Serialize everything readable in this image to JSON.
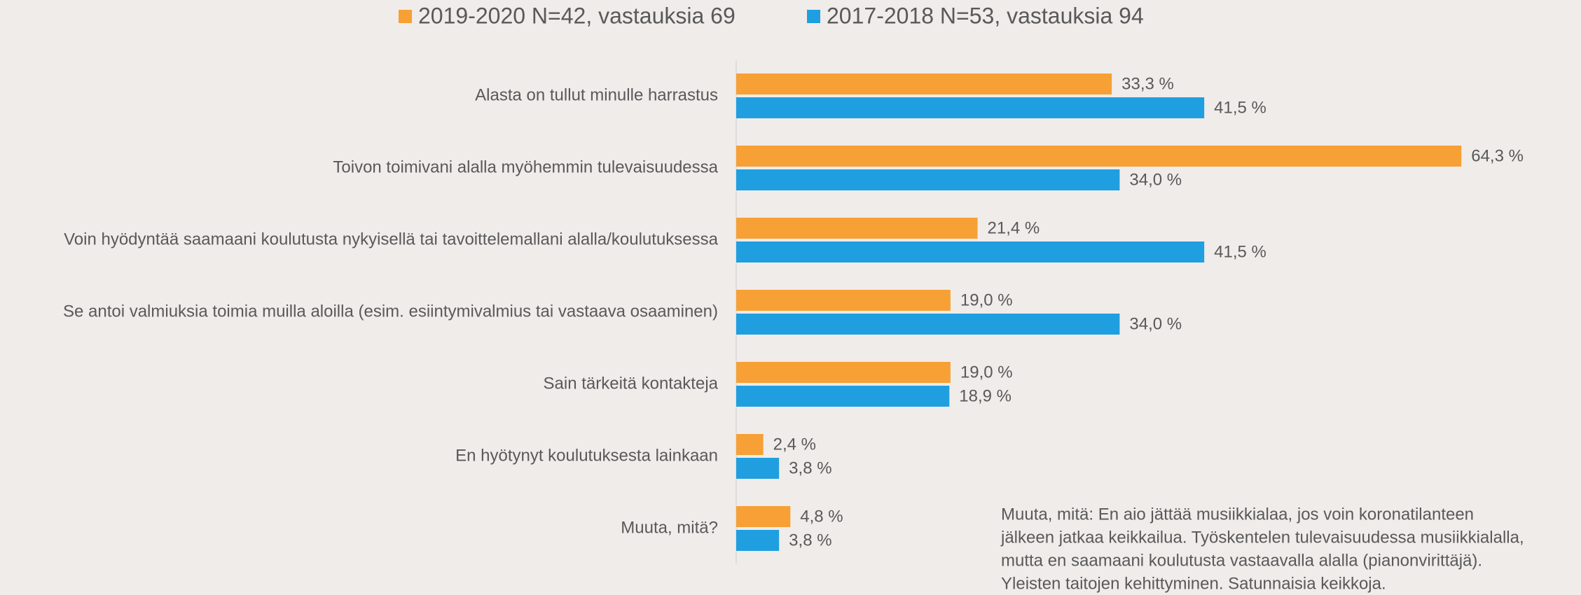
{
  "chart_data": {
    "type": "hbar",
    "categories": [
      "Alasta on tullut minulle harrastus",
      "Toivon toimivani alalla myöhemmin tulevaisuudessa",
      "Voin hyödyntää saamaani koulutusta nykyisellä tai tavoittelemallani alalla/koulutuksessa",
      "Se antoi valmiuksia toimia muilla aloilla (esim. esiintymivalmius tai vastaava osaaminen)",
      "Sain tärkeitä kontakteja",
      "En hyötynyt koulutuksesta lainkaan",
      "Muuta, mitä?"
    ],
    "series": [
      {
        "name": "2019-2020 N=42, vastauksia 69",
        "color": "#f7a035",
        "values": [
          33.3,
          64.3,
          21.4,
          19.0,
          19.0,
          2.4,
          4.8
        ],
        "value_labels": [
          "33,3 %",
          "64,3 %",
          "21,4 %",
          "19,0 %",
          "19,0 %",
          "2,4 %",
          "4,8 %"
        ]
      },
      {
        "name": "2017-2018 N=53, vastauksia 94",
        "color": "#1f9fe0",
        "values": [
          41.5,
          34.0,
          41.5,
          34.0,
          18.9,
          3.8,
          3.8
        ],
        "value_labels": [
          "41,5 %",
          "34,0 %",
          "41,5 %",
          "34,0 %",
          "18,9 %",
          "3,8 %",
          "3,8 %"
        ]
      }
    ],
    "annotation": [
      "Muuta, mitä: En aio jättää musiikkialaa, jos voin koronatilanteen",
      "jälkeen  jatkaa keikkailua. Työskentelen tulevaisuudessa musiikkialalla,",
      "mutta en saamaani koulutusta vastaavalla alalla (pianonvirittäjä).",
      "Yleisten taitojen kehittyminen. Satunnaisia keikkoja."
    ]
  }
}
